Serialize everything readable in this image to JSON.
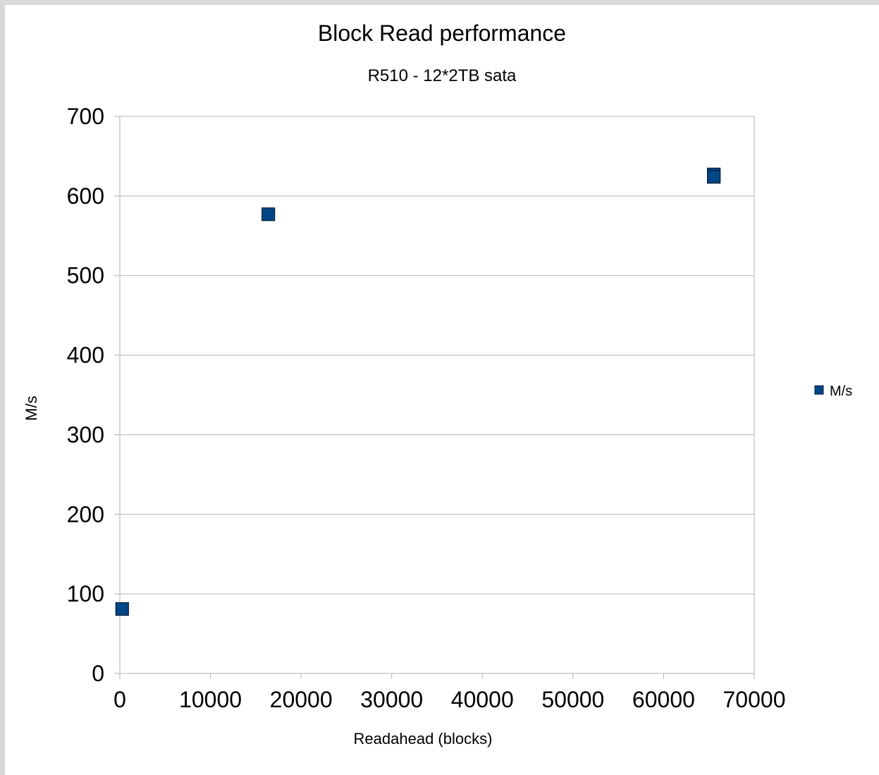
{
  "chart_data": {
    "type": "scatter",
    "title": "Block Read performance",
    "subtitle": "R510 - 12*2TB sata",
    "xlabel": "Readahead (blocks)",
    "ylabel": "M/s",
    "xlim": [
      0,
      70000
    ],
    "ylim": [
      0,
      700
    ],
    "x_ticks": [
      0,
      10000,
      20000,
      30000,
      40000,
      50000,
      60000,
      70000
    ],
    "y_ticks": [
      0,
      100,
      200,
      300,
      400,
      500,
      600,
      700
    ],
    "grid": "horizontal",
    "legend_position": "right",
    "series": [
      {
        "name": "M/s",
        "color": "#004586",
        "marker": "square",
        "points": [
          {
            "x": 256,
            "y": 81
          },
          {
            "x": 16384,
            "y": 577
          },
          {
            "x": 65536,
            "y": 627
          },
          {
            "x": 65536,
            "y": 624
          }
        ]
      }
    ]
  }
}
